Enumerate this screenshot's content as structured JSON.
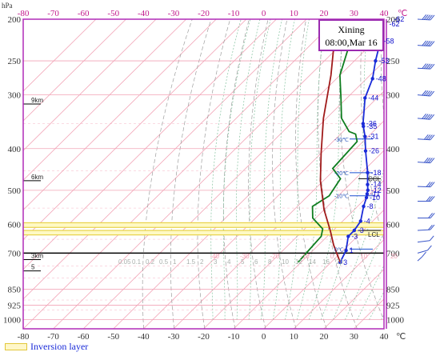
{
  "chart_data": {
    "type": "line",
    "pressure_axis_unit": "hPa",
    "temperature_axis_unit": "℃",
    "temperature_ticks": [
      -80,
      -70,
      -60,
      -50,
      -40,
      -30,
      -20,
      -10,
      0,
      10,
      20,
      30,
      40
    ],
    "pressure_ticks": [
      200,
      250,
      300,
      400,
      500,
      600,
      700,
      850,
      925,
      1000
    ],
    "xlim": [
      -80,
      40
    ],
    "ylim": [
      1050,
      200
    ],
    "y_scale": "log",
    "title_box": {
      "line1": "Xining",
      "line2": "08:00,Mar 16"
    },
    "height_markers": [
      {
        "label": "9km",
        "pressure": 315
      },
      {
        "label": "6km",
        "pressure": 475
      },
      {
        "label": "3km",
        "pressure": 725
      },
      {
        "label": "5",
        "pressure": 770
      }
    ],
    "levels": [
      {
        "label": "CCL",
        "pressure": 470
      },
      {
        "label": "LCL",
        "pressure": 620
      }
    ],
    "wet_bulb_zero_labels": [
      {
        "label": "-30℃",
        "pressure": 380
      },
      {
        "label": "-20℃",
        "pressure": 455
      },
      {
        "label": "-10℃",
        "pressure": 515
      },
      {
        "label": "0℃",
        "pressure": 685
      }
    ],
    "inversion_layers": [
      {
        "pressure_top": 595,
        "pressure_bottom": 610
      },
      {
        "pressure_top": 620,
        "pressure_bottom": 635
      }
    ],
    "series": [
      {
        "points": [
          [
            -62,
            200
          ],
          [
            -62,
            205
          ],
          [
            -58,
            225
          ],
          [
            -53,
            250
          ],
          [
            -48,
            275
          ],
          [
            -44,
            305
          ],
          [
            -36,
            350
          ],
          [
            -35,
            355
          ],
          [
            -31,
            375
          ],
          [
            -26,
            405
          ],
          [
            -18,
            455
          ],
          [
            -14,
            485
          ],
          [
            -12,
            500
          ],
          [
            -11,
            510
          ],
          [
            -10,
            520
          ],
          [
            -8,
            545
          ],
          [
            -4,
            590
          ],
          [
            -3,
            620
          ],
          [
            -3,
            640
          ],
          [
            1,
            690
          ],
          [
            3,
            735
          ]
        ]
      },
      {
        "points": [
          [
            -67,
            230
          ],
          [
            -60,
            270
          ],
          [
            -52,
            305
          ],
          [
            -45,
            340
          ],
          [
            -38,
            365
          ],
          [
            -35,
            370
          ],
          [
            -32,
            385
          ],
          [
            -31,
            445
          ],
          [
            -25,
            470
          ],
          [
            -23,
            515
          ],
          [
            -25,
            545
          ],
          [
            -21,
            580
          ],
          [
            -14,
            615
          ],
          [
            -12,
            640
          ],
          [
            -11,
            735
          ]
        ]
      },
      {
        "points": [
          [
            -80,
            200
          ],
          [
            -63,
            270
          ],
          [
            -51,
            340
          ],
          [
            -40,
            410
          ],
          [
            -31,
            475
          ],
          [
            -20,
            555
          ],
          [
            -11,
            620
          ],
          [
            -5,
            670
          ],
          [
            3,
            735
          ]
        ]
      }
    ],
    "profile_point_labels": [
      {
        "label": "-62",
        "t": -62,
        "p": 200
      },
      {
        "label": "-62",
        "t": -62,
        "p": 205
      },
      {
        "label": "-58",
        "t": -58,
        "p": 225
      },
      {
        "label": "-53",
        "t": -53,
        "p": 250
      },
      {
        "label": "-48",
        "t": -48,
        "p": 275
      },
      {
        "label": "-44",
        "t": -44,
        "p": 305
      },
      {
        "label": "-36",
        "t": -36,
        "p": 350
      },
      {
        "label": "-35",
        "t": -35,
        "p": 355
      },
      {
        "label": "-31",
        "t": -31,
        "p": 375
      },
      {
        "label": "-26",
        "t": -26,
        "p": 405
      },
      {
        "label": "-18",
        "t": -18,
        "p": 455
      },
      {
        "label": "-14",
        "t": -14,
        "p": 485
      },
      {
        "label": "-12",
        "t": -12,
        "p": 500
      },
      {
        "label": "-11",
        "t": -11,
        "p": 510
      },
      {
        "label": "-10",
        "t": -10,
        "p": 520
      },
      {
        "label": "-8",
        "t": -8,
        "p": 545
      },
      {
        "label": "-4",
        "t": -4,
        "p": 590
      },
      {
        "label": "-3",
        "t": -3,
        "p": 620
      },
      {
        "label": "-3",
        "t": -3,
        "p": 640
      },
      {
        "label": "1",
        "t": 1,
        "p": 690
      },
      {
        "label": "3",
        "t": 3,
        "p": 735
      }
    ],
    "winds": [
      {
        "pressure": 200,
        "dir": 280,
        "speed": 70
      },
      {
        "pressure": 230,
        "dir": 280,
        "speed": 65
      },
      {
        "pressure": 260,
        "dir": 280,
        "speed": 60
      },
      {
        "pressure": 300,
        "dir": 285,
        "speed": 50
      },
      {
        "pressure": 340,
        "dir": 285,
        "speed": 45
      },
      {
        "pressure": 380,
        "dir": 280,
        "speed": 40
      },
      {
        "pressure": 430,
        "dir": 280,
        "speed": 35
      },
      {
        "pressure": 490,
        "dir": 275,
        "speed": 30
      },
      {
        "pressure": 530,
        "dir": 270,
        "speed": 25
      },
      {
        "pressure": 580,
        "dir": 270,
        "speed": 20
      },
      {
        "pressure": 620,
        "dir": 260,
        "speed": 15
      },
      {
        "pressure": 660,
        "dir": 250,
        "speed": 10
      },
      {
        "pressure": 700,
        "dir": 230,
        "speed": 10
      },
      {
        "pressure": 730,
        "dir": 200,
        "speed": 5
      }
    ],
    "mixing_ratio_labels": [
      "0.05",
      "0.1",
      "0.2",
      "0.5",
      "1",
      "1.5",
      "2",
      "3",
      "4",
      "5",
      "6",
      "8",
      "10",
      "12",
      "14",
      "16",
      "20"
    ],
    "isotherm_labels": [
      "-40",
      "-30",
      "-20",
      "-10",
      "0",
      "10",
      "20"
    ],
    "legend": {
      "inversion_label": "Inversion layer"
    },
    "colors": {
      "frame": "#b02bb8",
      "temperature": "#1a2bd8",
      "dewpoint": "#0f7d1f",
      "parcel": "#a01a1a",
      "isotherm": "#f2a3b6",
      "dry_adiabat": "#9e9e9e",
      "moist_adiabat": "#86c3a0",
      "inversion": "#e8d24a",
      "title_box_border": "#9b2ab0",
      "wind_barb": "#3b57c9"
    }
  }
}
